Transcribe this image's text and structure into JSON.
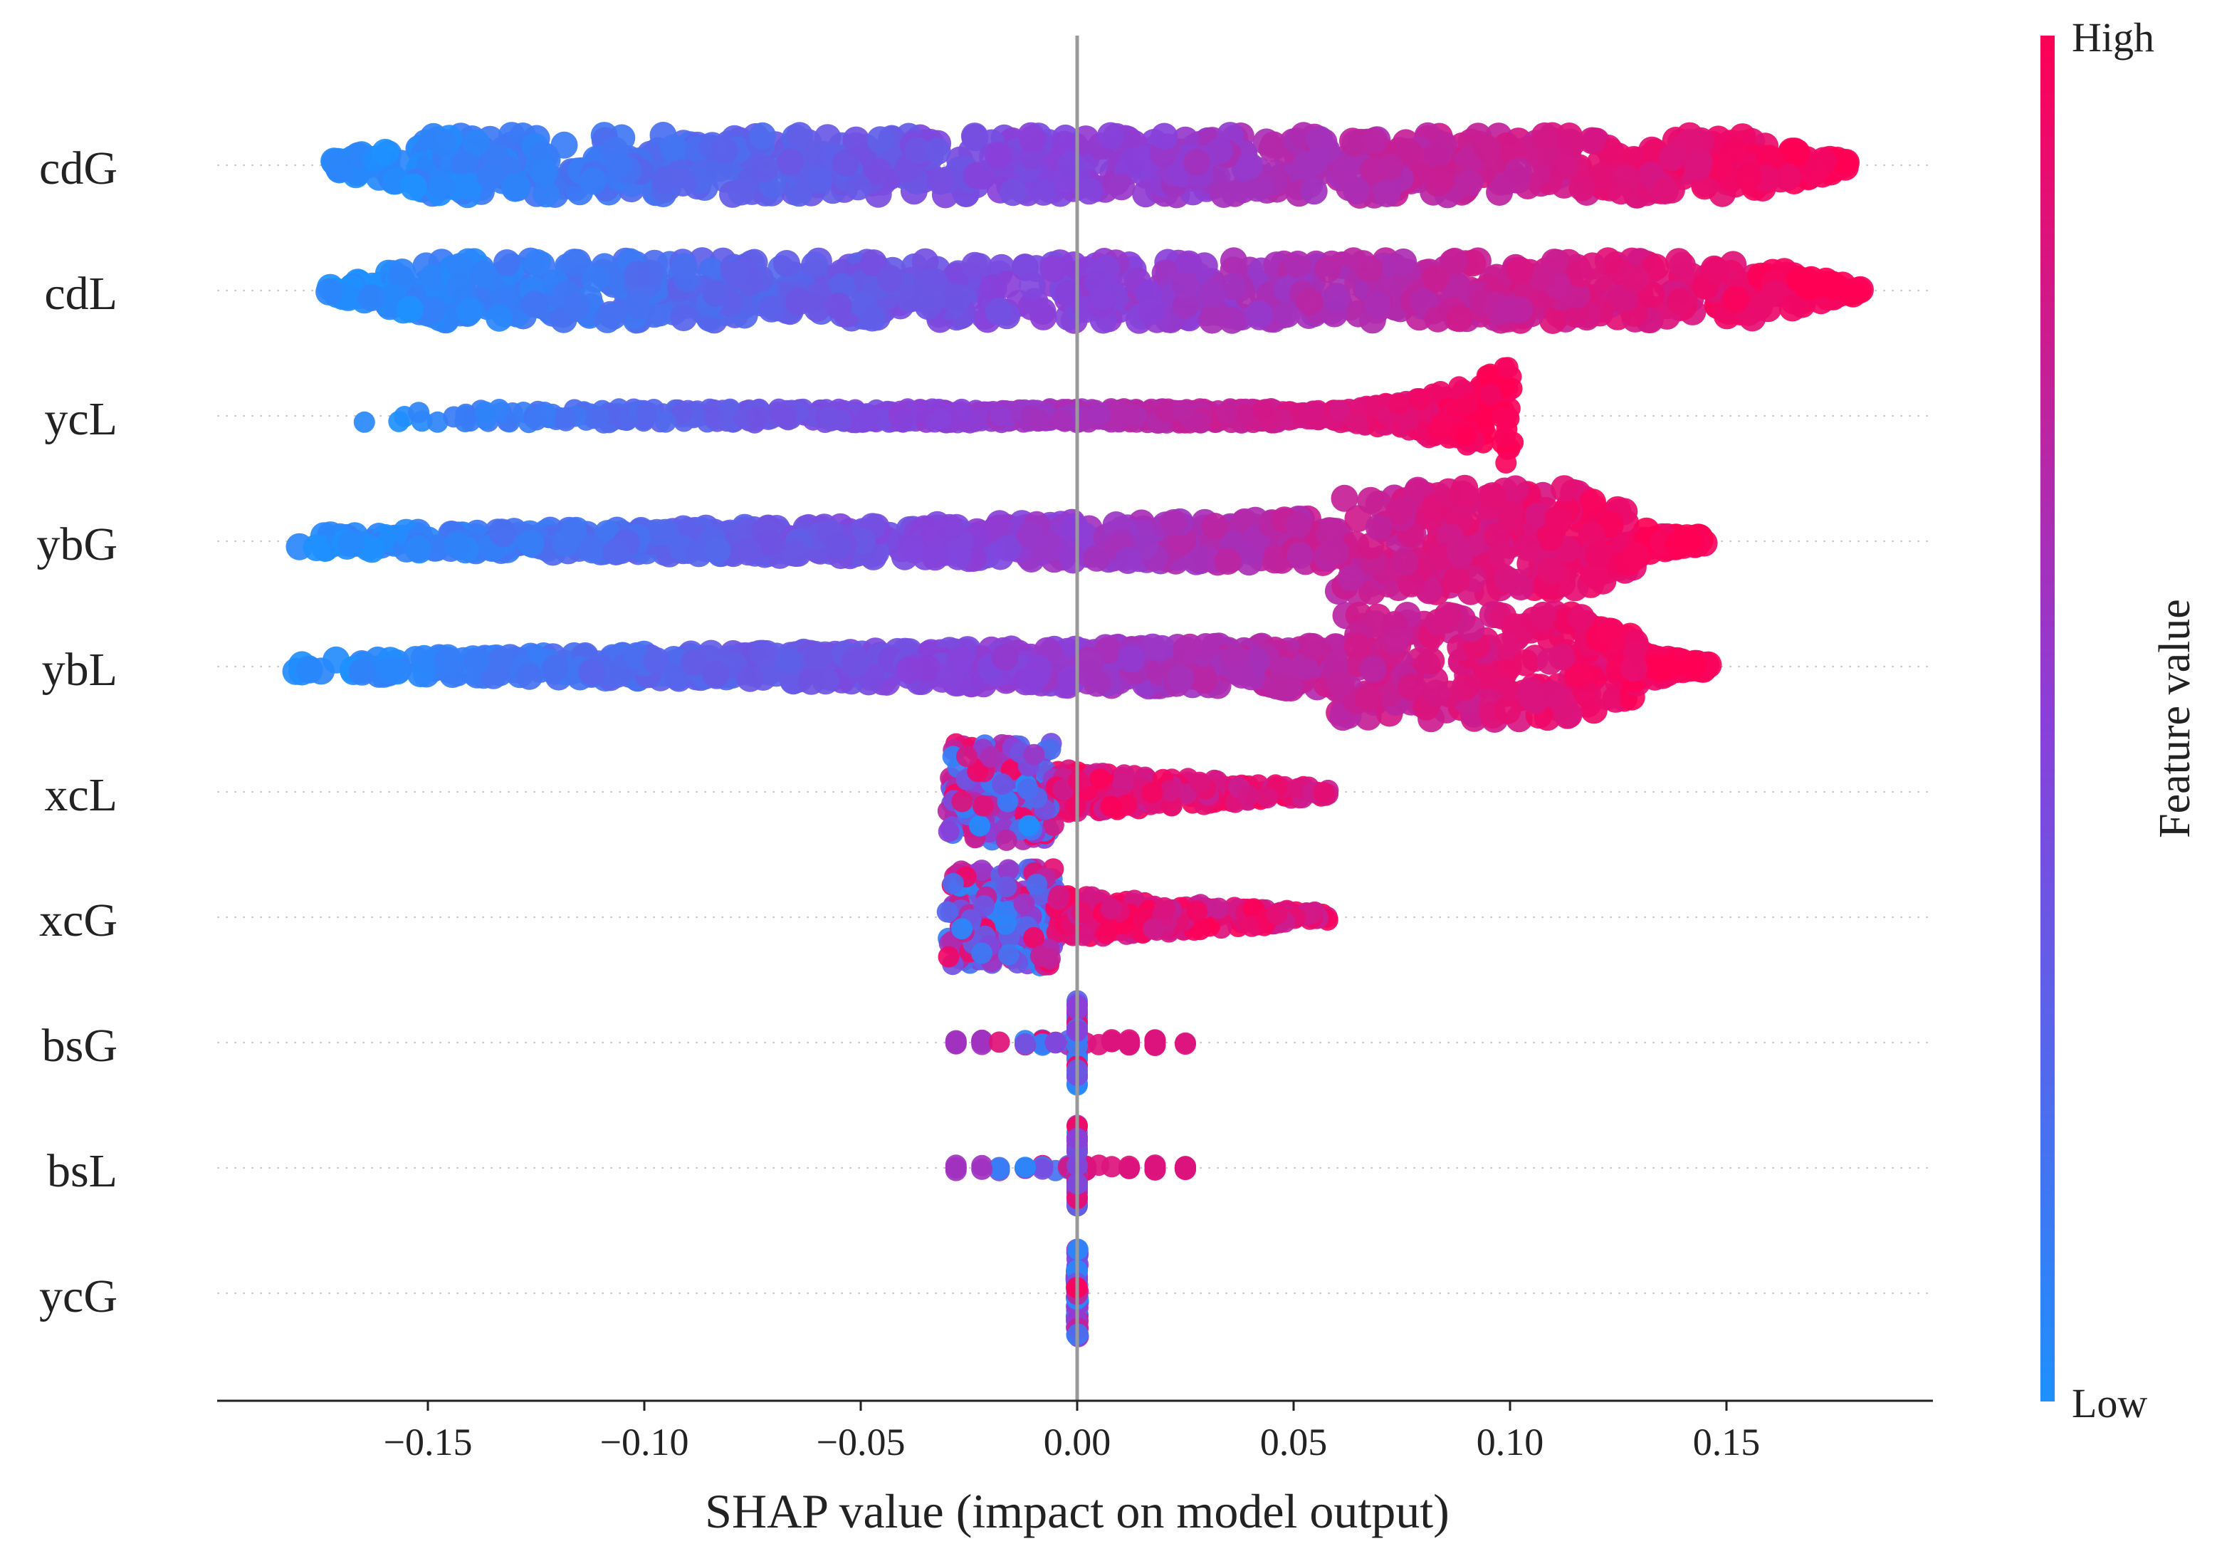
{
  "chart_data": {
    "type": "scatter",
    "subtype": "shap-beeswarm-summary",
    "title": "",
    "xlabel": "SHAP value (impact on model output)",
    "ylabel": "",
    "xlim": [
      -0.2,
      0.2
    ],
    "x_ticks": [
      -0.15,
      -0.1,
      -0.05,
      0.0,
      0.05,
      0.1,
      0.15
    ],
    "x_tick_labels": [
      "−0.15",
      "−0.10",
      "−0.05",
      "0.00",
      "0.05",
      "0.10",
      "0.15"
    ],
    "zero_line": 0.0,
    "colorbar": {
      "label": "Feature value",
      "high_label": "High",
      "low_label": "Low",
      "low_color": "#1e90ff",
      "mid_color": "#8a3fd9",
      "high_color": "#ff0055"
    },
    "features": [
      {
        "name": "cdG",
        "min": -0.173,
        "max": 0.178,
        "dense": 0.085,
        "shape": "wide",
        "tilt": 1
      },
      {
        "name": "cdL",
        "min": -0.173,
        "max": 0.181,
        "dense": 0.085,
        "shape": "wide",
        "tilt": 1
      },
      {
        "name": "ycL",
        "min": -0.168,
        "max": 0.101,
        "dense": 0.04,
        "shape": "trumpet",
        "tilt": 1
      },
      {
        "name": "ybG",
        "min": -0.182,
        "max": 0.145,
        "dense": 0.08,
        "shape": "rising",
        "tilt": 1
      },
      {
        "name": "ybL",
        "min": -0.181,
        "max": 0.146,
        "dense": 0.08,
        "shape": "rising",
        "tilt": 1
      },
      {
        "name": "xcL",
        "min": -0.031,
        "max": 0.058,
        "dense": 0.03,
        "shape": "blob",
        "tilt": 1
      },
      {
        "name": "xcG",
        "min": -0.031,
        "max": 0.058,
        "dense": 0.03,
        "shape": "blob",
        "tilt": 1
      },
      {
        "name": "bsG",
        "min": -0.028,
        "max": 0.025,
        "dense": 0.015,
        "shape": "sparse",
        "tilt": 1
      },
      {
        "name": "bsL",
        "min": -0.028,
        "max": 0.025,
        "dense": 0.015,
        "shape": "sparse",
        "tilt": 1
      },
      {
        "name": "ycG",
        "min": -0.001,
        "max": 0.001,
        "dense": 0.022,
        "shape": "stack",
        "tilt": 0
      }
    ]
  }
}
